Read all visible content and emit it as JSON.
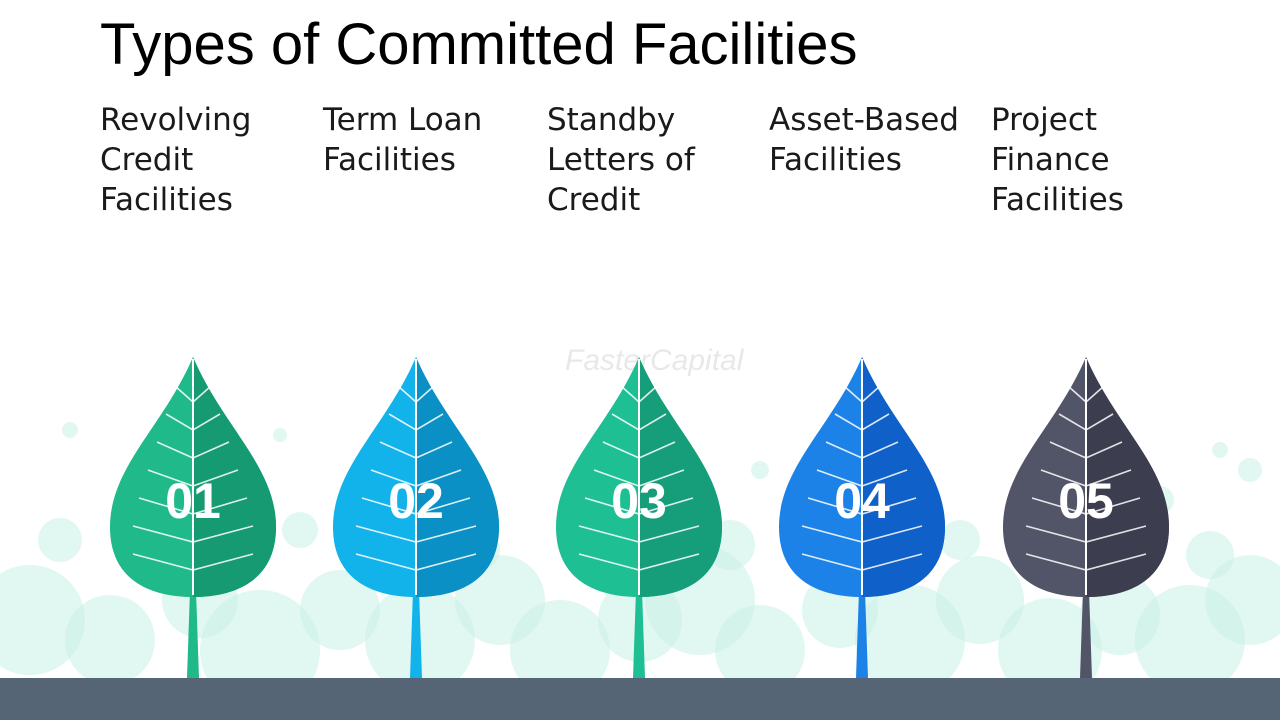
{
  "title": "Types of Committed Facilities",
  "watermark": "FasterCapital",
  "facilities": [
    {
      "number": "01",
      "lines": [
        "Revolving",
        "Credit",
        "Facilities"
      ],
      "color": "#1fb98a",
      "dark": "#169a72"
    },
    {
      "number": "02",
      "lines": [
        "Term Loan",
        "Facilities"
      ],
      "color": "#12b2ea",
      "dark": "#0a90c4"
    },
    {
      "number": "03",
      "lines": [
        "Standby",
        "Letters of",
        "Credit"
      ],
      "color": "#1fbf94",
      "dark": "#169e7a"
    },
    {
      "number": "04",
      "lines": [
        "Asset-Based",
        "Facilities"
      ],
      "color": "#1c82e8",
      "dark": "#0f60c8"
    },
    {
      "number": "05",
      "lines": [
        "Project",
        "Finance",
        "Facilities"
      ],
      "color": "#525468",
      "dark": "#3c3e50"
    }
  ],
  "colors": {
    "ground": "#556575",
    "bubbles": "#c8f0e6"
  }
}
